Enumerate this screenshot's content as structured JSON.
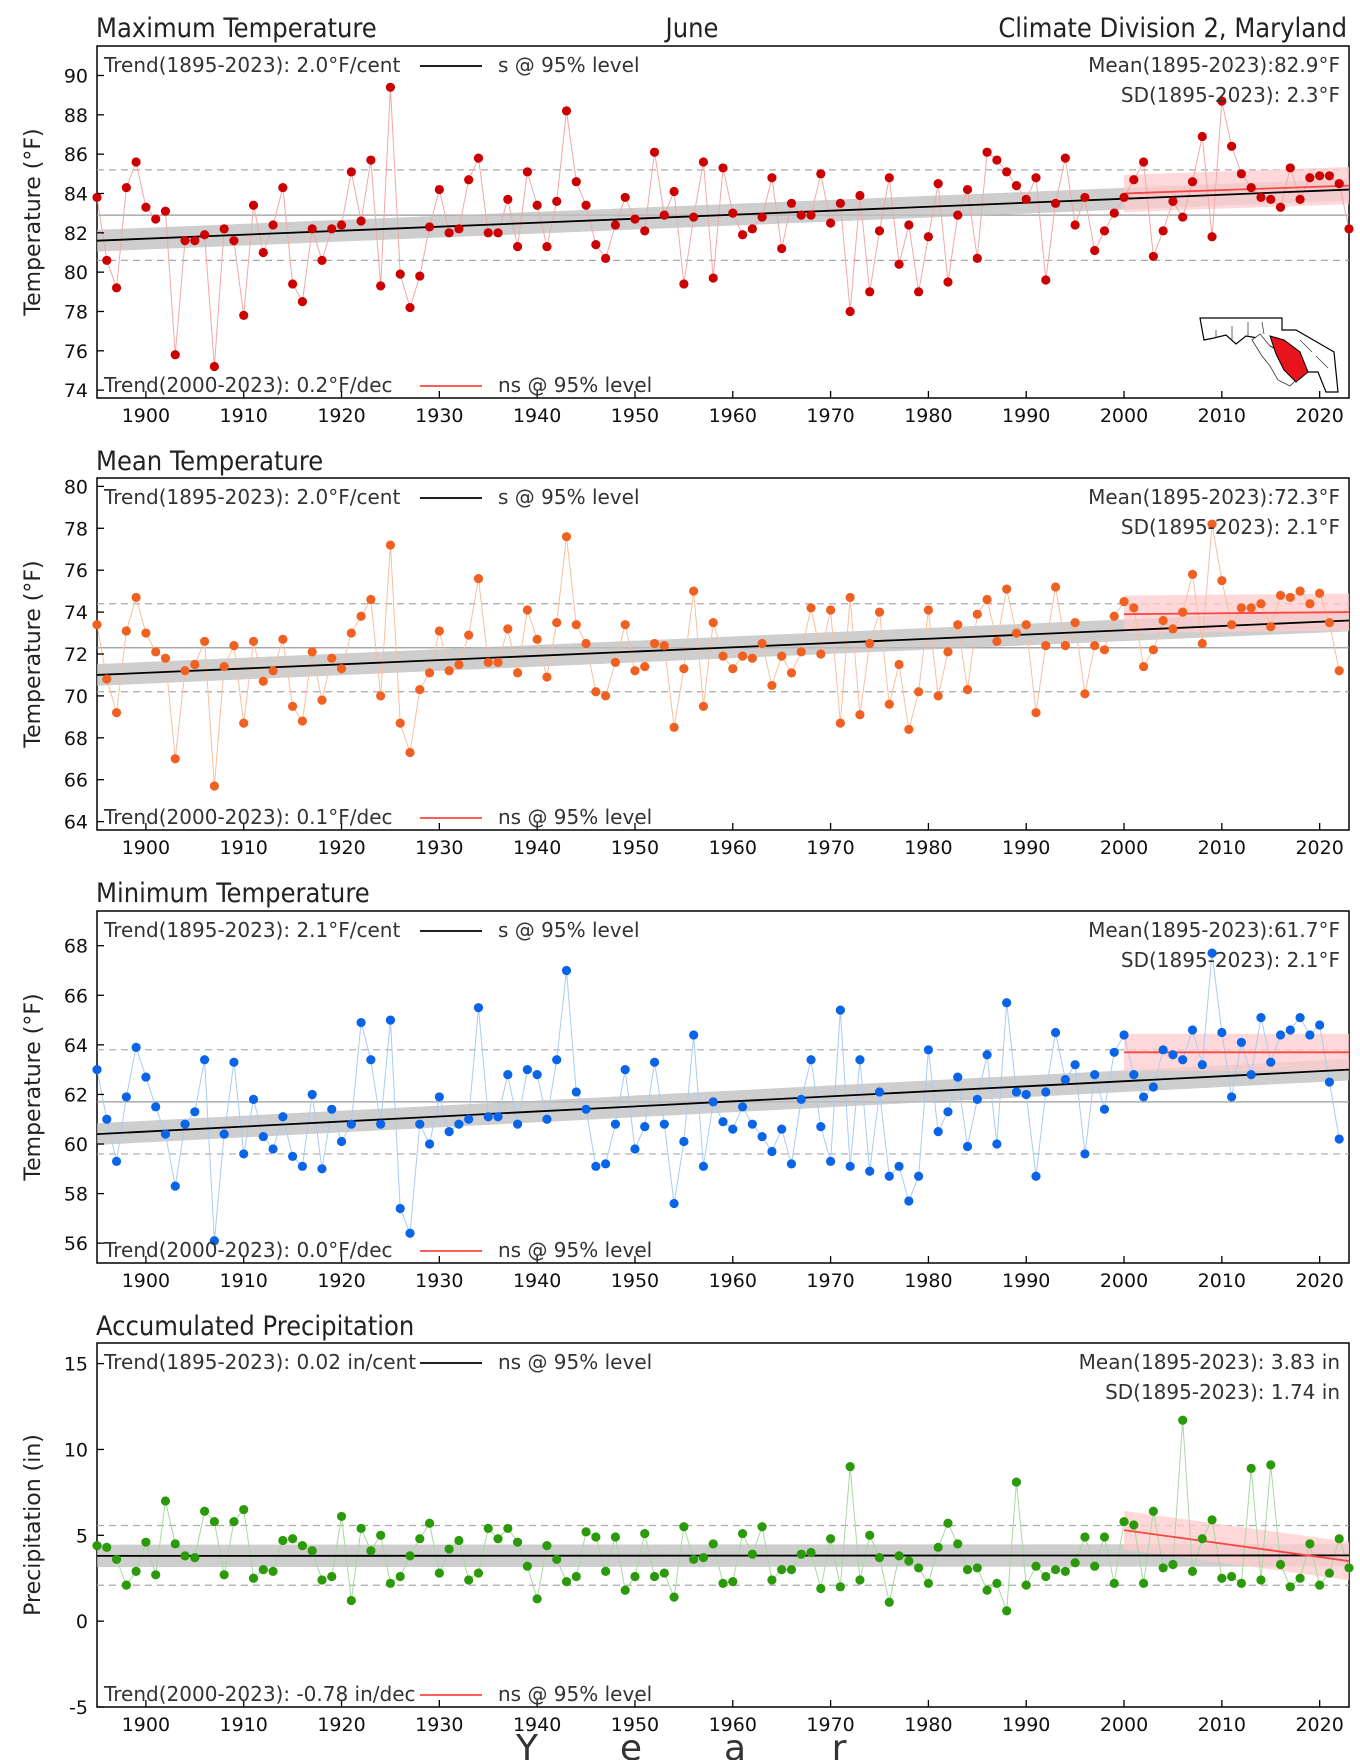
{
  "header": {
    "left": "Maximum Temperature",
    "center": "June",
    "right": "Climate Division 2, Maryland"
  },
  "xlabel_letters": [
    "Y",
    "e",
    "a",
    "r"
  ],
  "x_ticks": [
    1900,
    1910,
    1920,
    1930,
    1940,
    1950,
    1960,
    1970,
    1980,
    1990,
    2000,
    2010,
    2020
  ],
  "colors": {
    "max": "#cc0000",
    "mean": "#f06020",
    "min": "#0a64e8",
    "precip": "#2a9a0a",
    "recent_trend": "#ff4444"
  },
  "panels": [
    {
      "title": "",
      "ylabel": "Temperature (°F)",
      "y_ticks": [
        74,
        76,
        78,
        80,
        82,
        84,
        86,
        88,
        90
      ],
      "trend_full": "Trend(1895-2023):  2.0°F/cent",
      "trend_full_sig": "s @ 95% level",
      "trend_recent": "Trend(2000-2023):  0.2°F/dec",
      "trend_recent_sig": "ns @ 95% level",
      "mean_text": "Mean(1895-2023):82.9°F",
      "sd_text": "SD(1895-2023): 2.3°F"
    },
    {
      "title": "Mean Temperature",
      "ylabel": "Temperature (°F)",
      "y_ticks": [
        64,
        66,
        68,
        70,
        72,
        74,
        76,
        78,
        80
      ],
      "trend_full": "Trend(1895-2023):  2.0°F/cent",
      "trend_full_sig": "s @ 95% level",
      "trend_recent": "Trend(2000-2023):  0.1°F/dec",
      "trend_recent_sig": "ns @ 95% level",
      "mean_text": "Mean(1895-2023):72.3°F",
      "sd_text": "SD(1895-2023): 2.1°F"
    },
    {
      "title": "Minimum Temperature",
      "ylabel": "Temperature (°F)",
      "y_ticks": [
        56,
        58,
        60,
        62,
        64,
        66,
        68
      ],
      "trend_full": "Trend(1895-2023):  2.1°F/cent",
      "trend_full_sig": "s @ 95% level",
      "trend_recent": "Trend(2000-2023):  0.0°F/dec",
      "trend_recent_sig": "ns @ 95% level",
      "mean_text": "Mean(1895-2023):61.7°F",
      "sd_text": "SD(1895-2023): 2.1°F"
    },
    {
      "title": "Accumulated Precipitation",
      "ylabel": "Precipitation (in)",
      "y_ticks": [
        -5,
        0,
        5,
        10,
        15
      ],
      "trend_full": "Trend(1895-2023):  0.02 in/cent",
      "trend_full_sig": "ns @ 95% level",
      "trend_recent": "Trend(2000-2023): -0.78 in/dec",
      "trend_recent_sig": "ns @ 95% level",
      "mean_text": "Mean(1895-2023): 3.83 in",
      "sd_text": "SD(1895-2023): 1.74 in"
    }
  ],
  "chart_data": [
    {
      "type": "line",
      "x_start": 1895,
      "xlim": [
        1895,
        2023
      ],
      "ylim": [
        73.6,
        91.5
      ],
      "color_key": "max",
      "mean": 82.9,
      "sd": 2.3,
      "trend_full": [
        81.6,
        84.2
      ],
      "trend_recent": [
        84.0,
        84.4
      ],
      "values": [
        83.8,
        80.6,
        79.2,
        84.3,
        85.6,
        83.3,
        82.7,
        83.1,
        75.8,
        81.6,
        81.6,
        81.9,
        75.2,
        82.2,
        81.6,
        77.8,
        83.4,
        81.0,
        82.4,
        84.3,
        79.4,
        78.5,
        82.2,
        80.6,
        82.2,
        82.4,
        85.1,
        82.6,
        85.7,
        79.3,
        89.4,
        79.9,
        78.2,
        79.8,
        82.3,
        84.2,
        82.0,
        82.2,
        84.7,
        85.8,
        82.0,
        82.0,
        83.7,
        81.3,
        85.1,
        83.4,
        81.3,
        83.6,
        88.2,
        84.6,
        83.4,
        81.4,
        80.7,
        82.4,
        83.8,
        82.7,
        82.1,
        86.1,
        82.9,
        84.1,
        79.4,
        82.8,
        85.6,
        79.7,
        85.3,
        83.0,
        81.9,
        82.2,
        82.8,
        84.8,
        81.2,
        83.5,
        82.9,
        82.9,
        85.0,
        82.5,
        83.5,
        78.0,
        83.9,
        79.0,
        82.1,
        84.8,
        80.4,
        82.4,
        79.0,
        81.8,
        84.5,
        79.5,
        82.9,
        84.2,
        80.7,
        86.1,
        85.7,
        85.1,
        84.4,
        83.7,
        84.8,
        79.6,
        83.5,
        85.8,
        82.4,
        83.8,
        81.1,
        82.1,
        83.0,
        83.8,
        84.7,
        85.6,
        80.8,
        82.1,
        83.6,
        82.8,
        84.6,
        86.9,
        81.8,
        88.7,
        86.4,
        85.0,
        84.3,
        83.8,
        83.7,
        83.3,
        85.3,
        83.7,
        84.8,
        84.9,
        84.9,
        84.5,
        82.2
      ]
    },
    {
      "type": "line",
      "x_start": 1895,
      "xlim": [
        1895,
        2023
      ],
      "ylim": [
        63.6,
        80.4
      ],
      "color_key": "mean",
      "mean": 72.3,
      "sd": 2.1,
      "trend_full": [
        71.0,
        73.6
      ],
      "trend_recent": [
        73.9,
        74.0
      ],
      "values": [
        73.4,
        70.8,
        69.2,
        73.1,
        74.7,
        73.0,
        72.1,
        71.8,
        67.0,
        71.2,
        71.5,
        72.6,
        65.7,
        71.4,
        72.4,
        68.7,
        72.6,
        70.7,
        71.2,
        72.7,
        69.5,
        68.8,
        72.1,
        69.8,
        71.8,
        71.3,
        73.0,
        73.8,
        74.6,
        70.0,
        77.2,
        68.7,
        67.3,
        70.3,
        71.1,
        73.1,
        71.2,
        71.5,
        72.9,
        75.6,
        71.6,
        71.6,
        73.2,
        71.1,
        74.1,
        72.7,
        70.9,
        73.5,
        77.6,
        73.4,
        72.5,
        70.2,
        70.0,
        71.6,
        73.4,
        71.2,
        71.4,
        72.5,
        72.4,
        68.5,
        71.3,
        75.0,
        69.5,
        73.5,
        71.9,
        71.3,
        71.9,
        71.8,
        72.5,
        70.5,
        71.9,
        71.1,
        72.1,
        74.2,
        72.0,
        74.1,
        68.7,
        74.7,
        69.1,
        72.5,
        74.0,
        69.6,
        71.5,
        68.4,
        70.2,
        74.1,
        70.0,
        72.1,
        73.4,
        70.3,
        73.9,
        74.6,
        72.6,
        75.1,
        73.0,
        73.4,
        69.2,
        72.4,
        75.2,
        72.4,
        73.5,
        70.1,
        72.4,
        72.2,
        73.8,
        74.5,
        74.2,
        71.4,
        72.2,
        73.6,
        73.2,
        74.0,
        75.8,
        72.5,
        78.2,
        75.5,
        73.4,
        74.2,
        74.2,
        74.4,
        73.3,
        74.8,
        74.7,
        75.0,
        74.4,
        74.9,
        73.5,
        71.2
      ]
    },
    {
      "type": "line",
      "x_start": 1895,
      "xlim": [
        1895,
        2023
      ],
      "ylim": [
        55.2,
        69.4
      ],
      "color_key": "min",
      "mean": 61.7,
      "sd": 2.1,
      "trend_full": [
        60.4,
        63.0
      ],
      "trend_recent": [
        63.7,
        63.7
      ],
      "values": [
        63.0,
        61.0,
        59.3,
        61.9,
        63.9,
        62.7,
        61.5,
        60.4,
        58.3,
        60.8,
        61.3,
        63.4,
        56.1,
        60.4,
        63.3,
        59.6,
        61.8,
        60.3,
        59.8,
        61.1,
        59.5,
        59.1,
        62.0,
        59.0,
        61.4,
        60.1,
        60.8,
        64.9,
        63.4,
        60.8,
        65.0,
        57.4,
        56.4,
        60.8,
        60.0,
        61.9,
        60.5,
        60.8,
        61.0,
        65.5,
        61.1,
        61.1,
        62.8,
        60.8,
        63.0,
        62.8,
        61.0,
        63.4,
        67.0,
        62.1,
        61.4,
        59.1,
        59.2,
        60.8,
        63.0,
        59.8,
        60.7,
        63.3,
        60.8,
        57.6,
        60.1,
        64.4,
        59.1,
        61.7,
        60.9,
        60.6,
        61.5,
        60.8,
        60.3,
        59.7,
        60.6,
        59.2,
        61.8,
        63.4,
        60.7,
        59.3,
        65.4,
        59.1,
        63.4,
        58.9,
        62.1,
        58.7,
        59.1,
        57.7,
        58.7,
        63.8,
        60.5,
        61.3,
        62.7,
        59.9,
        61.8,
        63.6,
        60.0,
        65.7,
        62.1,
        62.0,
        58.7,
        62.1,
        64.5,
        62.6,
        63.2,
        59.6,
        62.8,
        61.4,
        63.7,
        64.4,
        62.8,
        61.9,
        62.3,
        63.8,
        63.6,
        63.4,
        64.6,
        63.2,
        67.7,
        64.5,
        61.9,
        64.1,
        62.8,
        65.1,
        63.3,
        64.4,
        64.6,
        65.1,
        64.4,
        64.8,
        62.5,
        60.2
      ]
    },
    {
      "type": "line",
      "x_start": 1895,
      "xlim": [
        1895,
        2023
      ],
      "ylim": [
        -5,
        16.2
      ],
      "color_key": "precip",
      "mean": 3.83,
      "sd": 1.74,
      "trend_full": [
        3.8,
        3.83
      ],
      "trend_recent": [
        5.3,
        3.5
      ],
      "values": [
        4.4,
        4.3,
        3.6,
        2.1,
        2.9,
        4.6,
        2.7,
        7.0,
        4.5,
        3.8,
        3.7,
        6.4,
        5.8,
        2.7,
        5.8,
        6.5,
        2.5,
        3.0,
        2.9,
        4.7,
        4.8,
        4.4,
        4.1,
        2.4,
        2.6,
        6.1,
        1.2,
        5.4,
        4.1,
        5.0,
        2.2,
        2.6,
        3.8,
        4.8,
        5.7,
        2.8,
        4.2,
        4.7,
        2.4,
        2.8,
        5.4,
        4.8,
        5.4,
        4.6,
        3.2,
        1.3,
        4.4,
        3.6,
        2.3,
        2.6,
        5.2,
        4.9,
        2.9,
        4.9,
        1.8,
        2.6,
        5.1,
        2.6,
        2.8,
        1.4,
        5.5,
        3.6,
        3.7,
        4.5,
        2.2,
        2.3,
        5.1,
        3.9,
        5.5,
        2.4,
        3.0,
        3.0,
        3.9,
        4.0,
        1.9,
        4.8,
        2.0,
        9.0,
        2.4,
        5.0,
        3.7,
        1.1,
        3.8,
        3.5,
        3.1,
        2.2,
        4.3,
        5.7,
        4.5,
        3.0,
        3.1,
        1.8,
        2.2,
        0.6,
        8.1,
        2.1,
        3.2,
        2.6,
        3.0,
        2.9,
        3.4,
        4.9,
        3.2,
        4.9,
        2.2,
        5.8,
        5.6,
        2.2,
        6.4,
        3.1,
        3.3,
        11.7,
        2.9,
        4.8,
        5.9,
        2.5,
        2.6,
        2.2,
        8.9,
        2.4,
        9.1,
        3.3,
        2.0,
        2.5,
        4.5,
        2.1,
        2.8,
        4.8,
        3.1
      ]
    }
  ]
}
